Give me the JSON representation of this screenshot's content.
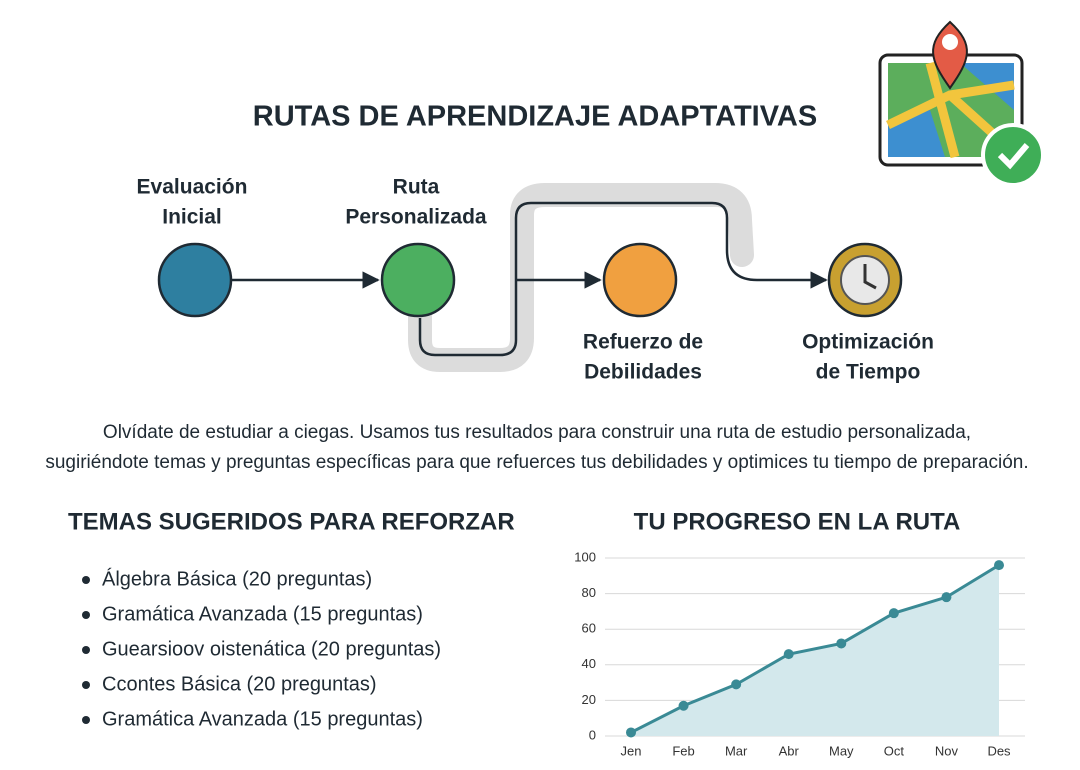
{
  "header": {
    "title": "RUTAS DE APRENDIZAJE ADAPTATIVAS"
  },
  "nodes": [
    {
      "label": [
        "Evaluación",
        "Inicial"
      ]
    },
    {
      "label": [
        "Ruta",
        "Personalizada"
      ]
    },
    {
      "label": [
        "Refuerzo de",
        "Debilidades"
      ]
    },
    {
      "label": [
        "Optimización",
        "de Tiempo"
      ]
    }
  ],
  "description": [
    "Olvídate de estudiar a ciegas. Usamos tus resultados para construir una ruta de estudio personalizada,",
    "sugiriéndote temas y preguntas específicas para que refuerces tus debilidades y optimices tu tiempo de preparación."
  ],
  "topics": {
    "title": "TEMAS SUGERIDOS PARA REFORZAR",
    "items": [
      "Álgebra Básica (20 preguntas)",
      "Gramática Avanzada (15 preguntas)",
      "Guearsioov oistenática (20 preguntas)",
      "Ccontes Básica (20 preguntas)",
      "Gramática Avanzada (15 preguntas)"
    ]
  },
  "chart_data": {
    "type": "line",
    "title": "TU PROGRESO EN LA RUTA",
    "categories": [
      "Jen",
      "Feb",
      "Mar",
      "Abr",
      "May",
      "Oct",
      "Nov",
      "Des"
    ],
    "values": [
      2,
      17,
      29,
      46,
      52,
      69,
      78,
      96
    ],
    "color": "#3a8a95",
    "fill": "#d3e8ec",
    "ylim": [
      0,
      100
    ],
    "yticks": [
      0,
      20,
      40,
      60,
      80,
      100
    ],
    "grid": true
  }
}
